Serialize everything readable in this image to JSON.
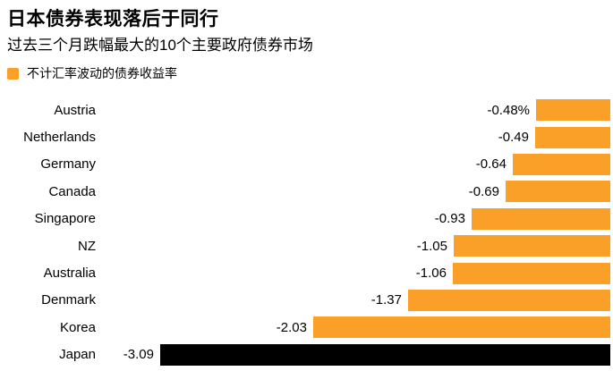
{
  "header": {
    "title": "日本债券表现落后于同行",
    "subtitle": "过去三个月跌幅最大的10个主要政府债券市场"
  },
  "legend": {
    "label": "不计汇率波动的债券收益率",
    "swatch_color": "#FAA028"
  },
  "colors": {
    "background": "#FFFFFF",
    "text": "#000000",
    "bar_default": "#FAA028",
    "bar_highlight": "#000000"
  },
  "chart_data": {
    "type": "bar",
    "orientation": "horizontal",
    "title": "日本债券表现落后于同行",
    "subtitle": "过去三个月跌幅最大的10个主要政府债券市场",
    "series_name": "不计汇率波动的债券收益率",
    "categories": [
      "Austria",
      "Netherlands",
      "Germany",
      "Canada",
      "Singapore",
      "NZ",
      "Australia",
      "Denmark",
      "Korea",
      "Japan"
    ],
    "values": [
      -0.48,
      -0.49,
      -0.64,
      -0.69,
      -0.93,
      -1.05,
      -1.06,
      -1.37,
      -2.03,
      -3.09
    ],
    "value_labels": [
      "-0.48%",
      "-0.49",
      "-0.64",
      "-0.69",
      "-0.93",
      "-1.05",
      "-1.06",
      "-1.37",
      "-2.03",
      "-3.09"
    ],
    "unit": "%",
    "xlim": [
      -3.09,
      0
    ],
    "bars_aligned": "right",
    "grid": false,
    "legend_position": "top-left",
    "highlight_category": "Japan",
    "bar_color_default": "#FAA028",
    "bar_color_highlight": "#000000"
  }
}
